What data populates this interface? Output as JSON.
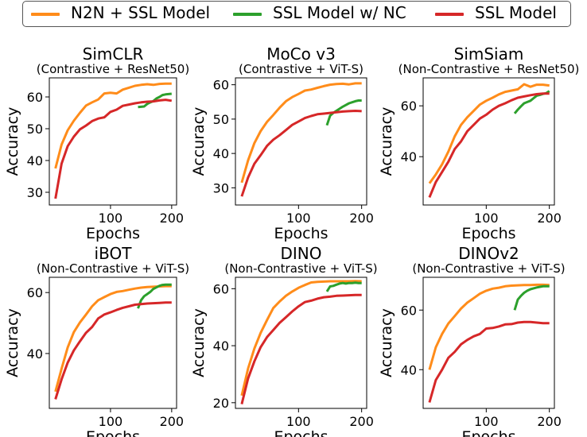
{
  "legend": {
    "items": [
      {
        "label": "N2N + SSL Model",
        "color": "#ff8c1a"
      },
      {
        "label": "SSL Model w/ NC",
        "color": "#2ca02c"
      },
      {
        "label": "SSL Model",
        "color": "#d62728"
      }
    ]
  },
  "chart_data": [
    {
      "type": "line",
      "title": "SimCLR",
      "subtitle": "(Contrastive + ResNet50)",
      "xlabel": "Epochs",
      "ylabel": "Accuracy",
      "xlim": [
        0,
        208
      ],
      "ylim": [
        26,
        66
      ],
      "xticks": [
        100,
        200
      ],
      "yticks": [
        30,
        40,
        50,
        60
      ],
      "grid": false,
      "series": [
        {
          "name": "N2N + SSL Model",
          "color": "#ff8c1a",
          "x": [
            10,
            20,
            30,
            40,
            50,
            60,
            70,
            80,
            90,
            100,
            110,
            120,
            130,
            140,
            150,
            160,
            170,
            180,
            190,
            200
          ],
          "y": [
            37.5,
            45,
            49.5,
            52.5,
            55,
            57.3,
            58.3,
            59.2,
            61.1,
            61.3,
            61.1,
            62.3,
            62.9,
            63.5,
            63.8,
            64,
            63.8,
            64.1,
            64.2,
            64.2
          ]
        },
        {
          "name": "SSL Model w/ NC",
          "color": "#2ca02c",
          "x": [
            145,
            150,
            155,
            160,
            165,
            170,
            175,
            180,
            185,
            190,
            195,
            200
          ],
          "y": [
            56.8,
            56.9,
            57,
            57.8,
            58.3,
            58.7,
            59.5,
            60,
            60.6,
            60.8,
            60.9,
            61
          ]
        },
        {
          "name": "SSL Model",
          "color": "#d62728",
          "x": [
            10,
            20,
            30,
            40,
            50,
            60,
            70,
            80,
            90,
            100,
            110,
            120,
            130,
            140,
            150,
            160,
            170,
            180,
            190,
            200
          ],
          "y": [
            28,
            39,
            44.5,
            47.5,
            49.8,
            51,
            52.4,
            53.2,
            53.6,
            55.3,
            56,
            57.2,
            57.6,
            58,
            58.3,
            58.5,
            58.6,
            58.9,
            59.1,
            58.8
          ]
        }
      ]
    },
    {
      "type": "line",
      "title": "MoCo v3",
      "subtitle": "(Contrastive + ViT-S)",
      "xlabel": "Epochs",
      "ylabel": "Accuracy",
      "xlim": [
        0,
        208
      ],
      "ylim": [
        25,
        62
      ],
      "xticks": [
        100,
        200
      ],
      "yticks": [
        30,
        40,
        50,
        60
      ],
      "grid": false,
      "series": [
        {
          "name": "N2N + SSL Model",
          "color": "#ff8c1a",
          "x": [
            10,
            20,
            30,
            40,
            50,
            60,
            70,
            80,
            90,
            100,
            110,
            120,
            130,
            140,
            150,
            160,
            170,
            180,
            190,
            200
          ],
          "y": [
            31.5,
            38,
            43,
            46.5,
            49.2,
            51.2,
            53.3,
            55.2,
            56.4,
            57.3,
            58.3,
            58.6,
            59.1,
            59.6,
            60,
            60.2,
            60.3,
            60.1,
            60.4,
            60.4
          ]
        },
        {
          "name": "SSL Model w/ NC",
          "color": "#2ca02c",
          "x": [
            145,
            150,
            155,
            160,
            165,
            170,
            175,
            180,
            185,
            190,
            195,
            200
          ],
          "y": [
            48.2,
            51,
            51.8,
            52.4,
            53,
            53.6,
            54.1,
            54.6,
            54.9,
            55.2,
            55.4,
            55.4
          ]
        },
        {
          "name": "SSL Model",
          "color": "#d62728",
          "x": [
            10,
            20,
            30,
            40,
            50,
            60,
            70,
            80,
            90,
            100,
            110,
            120,
            130,
            140,
            150,
            160,
            170,
            180,
            190,
            200
          ],
          "y": [
            27.5,
            33,
            37,
            39.5,
            42.2,
            44,
            45.3,
            46.8,
            48.3,
            49.3,
            50.3,
            50.9,
            51.4,
            51.6,
            51.8,
            52,
            52.2,
            52.3,
            52.4,
            52.3
          ]
        }
      ]
    },
    {
      "type": "line",
      "title": "SimSiam",
      "subtitle": "(Non-Contrastive + ResNet50)",
      "xlabel": "Epochs",
      "ylabel": "Accuracy",
      "xlim": [
        0,
        208
      ],
      "ylim": [
        21,
        71
      ],
      "xticks": [
        100,
        200
      ],
      "yticks": [
        40,
        60
      ],
      "grid": false,
      "series": [
        {
          "name": "N2N + SSL Model",
          "color": "#ff8c1a",
          "x": [
            10,
            20,
            30,
            40,
            50,
            60,
            70,
            80,
            90,
            100,
            110,
            120,
            130,
            140,
            150,
            160,
            170,
            180,
            190,
            200
          ],
          "y": [
            29.5,
            33,
            37,
            42,
            48,
            52.5,
            55.5,
            58,
            60.5,
            62,
            63.2,
            64.5,
            65.5,
            66,
            66.5,
            68.5,
            67.5,
            68.3,
            68.3,
            68
          ]
        },
        {
          "name": "SSL Model w/ NC",
          "color": "#2ca02c",
          "x": [
            145,
            150,
            155,
            160,
            165,
            170,
            175,
            180,
            185,
            190,
            195,
            200
          ],
          "y": [
            57,
            58.5,
            59.8,
            61,
            61.5,
            62,
            63,
            64,
            64.3,
            64.7,
            65,
            65.8
          ]
        },
        {
          "name": "SSL Model",
          "color": "#d62728",
          "x": [
            10,
            20,
            30,
            40,
            50,
            60,
            70,
            80,
            90,
            100,
            110,
            120,
            130,
            140,
            150,
            160,
            170,
            180,
            190,
            200
          ],
          "y": [
            24,
            30,
            34,
            38,
            43,
            46,
            50,
            52.5,
            55,
            56.5,
            58.5,
            60,
            61,
            62.2,
            63.2,
            63.7,
            64.2,
            64.6,
            64.8,
            64.8
          ]
        }
      ]
    },
    {
      "type": "line",
      "title": "iBOT",
      "subtitle": "(Non-Contrastive + ViT-S)",
      "xlabel": "Epochs",
      "ylabel": "Accuracy",
      "xlim": [
        0,
        208
      ],
      "ylim": [
        22,
        65
      ],
      "xticks": [
        100,
        200
      ],
      "yticks": [
        40,
        60
      ],
      "grid": false,
      "series": [
        {
          "name": "N2N + SSL Model",
          "color": "#ff8c1a",
          "x": [
            10,
            20,
            30,
            40,
            50,
            60,
            70,
            80,
            90,
            100,
            110,
            120,
            130,
            140,
            150,
            160,
            170,
            180,
            190,
            200
          ],
          "y": [
            27.5,
            35,
            42,
            47,
            50.2,
            52.8,
            55.5,
            57.5,
            58.5,
            59.5,
            60.2,
            60.5,
            60.9,
            61.3,
            61.6,
            61.8,
            61.9,
            62,
            62.1,
            62.1
          ]
        },
        {
          "name": "SSL Model w/ NC",
          "color": "#2ca02c",
          "x": [
            145,
            150,
            155,
            160,
            165,
            170,
            175,
            180,
            185,
            190,
            195,
            200
          ],
          "y": [
            54.8,
            57.5,
            58.8,
            59.5,
            60.2,
            61.2,
            61.7,
            62.2,
            62.5,
            62.6,
            62.6,
            62.6
          ]
        },
        {
          "name": "SSL Model",
          "color": "#d62728",
          "x": [
            10,
            20,
            30,
            40,
            50,
            60,
            70,
            80,
            90,
            100,
            110,
            120,
            130,
            140,
            150,
            160,
            170,
            180,
            190,
            200
          ],
          "y": [
            25,
            31.5,
            37,
            41,
            44,
            46.8,
            48.7,
            51.5,
            52.8,
            53.5,
            54.3,
            55,
            55.5,
            56,
            56.2,
            56.4,
            56.5,
            56.6,
            56.7,
            56.7
          ]
        }
      ]
    },
    {
      "type": "line",
      "title": "DINO",
      "subtitle": "(Non-Contrastive + ViT-S)",
      "xlabel": "Epochs",
      "ylabel": "Accuracy",
      "xlim": [
        0,
        208
      ],
      "ylim": [
        18,
        64
      ],
      "xticks": [
        100,
        200
      ],
      "yticks": [
        20,
        40,
        60
      ],
      "grid": false,
      "series": [
        {
          "name": "N2N + SSL Model",
          "color": "#ff8c1a",
          "x": [
            10,
            20,
            30,
            40,
            50,
            60,
            70,
            80,
            90,
            100,
            110,
            120,
            130,
            140,
            150,
            160,
            170,
            180,
            190,
            200
          ],
          "y": [
            22.5,
            32,
            39,
            44.5,
            49,
            53.2,
            55.5,
            57.5,
            59,
            60.3,
            61.3,
            62.2,
            62.4,
            62.5,
            62.6,
            62.6,
            62.6,
            62.6,
            62.7,
            62.6
          ]
        },
        {
          "name": "SSL Model w/ NC",
          "color": "#2ca02c",
          "x": [
            145,
            150,
            155,
            160,
            165,
            170,
            175,
            180,
            185,
            190,
            195,
            200
          ],
          "y": [
            59,
            60.8,
            61,
            61.4,
            61.8,
            62,
            61.8,
            62,
            62,
            62.1,
            62,
            62
          ]
        },
        {
          "name": "SSL Model",
          "color": "#d62728",
          "x": [
            10,
            20,
            30,
            40,
            50,
            60,
            70,
            80,
            90,
            100,
            110,
            120,
            130,
            140,
            150,
            160,
            170,
            180,
            190,
            200
          ],
          "y": [
            19.5,
            28.5,
            34.5,
            39.5,
            43,
            45.5,
            48,
            50,
            52,
            53.8,
            55.3,
            55.8,
            56.5,
            57,
            57.2,
            57.5,
            57.6,
            57.7,
            57.8,
            57.8
          ]
        }
      ]
    },
    {
      "type": "line",
      "title": "DINOv2",
      "subtitle": "(Non-Contrastive + ViT-S)",
      "xlabel": "Epochs",
      "ylabel": "Accuracy",
      "xlim": [
        0,
        208
      ],
      "ylim": [
        27,
        71
      ],
      "xticks": [
        100,
        200
      ],
      "yticks": [
        40,
        60
      ],
      "grid": false,
      "series": [
        {
          "name": "N2N + SSL Model",
          "color": "#ff8c1a",
          "x": [
            10,
            20,
            30,
            40,
            50,
            60,
            70,
            80,
            90,
            100,
            110,
            120,
            130,
            140,
            150,
            160,
            170,
            180,
            190,
            200
          ],
          "y": [
            40,
            47.5,
            52,
            55.5,
            58,
            60.5,
            62.5,
            64,
            65.5,
            66.5,
            67.2,
            67.5,
            68,
            68.2,
            68.3,
            68.4,
            68.4,
            68.5,
            68.5,
            68.4
          ]
        },
        {
          "name": "SSL Model w/ NC",
          "color": "#2ca02c",
          "x": [
            145,
            150,
            155,
            160,
            165,
            170,
            175,
            180,
            185,
            190,
            195,
            200
          ],
          "y": [
            60,
            63.5,
            64.8,
            65.8,
            66.5,
            67,
            67.3,
            67.6,
            67.8,
            68,
            68,
            68
          ]
        },
        {
          "name": "SSL Model",
          "color": "#d62728",
          "x": [
            10,
            20,
            30,
            40,
            50,
            60,
            70,
            80,
            90,
            100,
            110,
            120,
            130,
            140,
            150,
            160,
            170,
            180,
            190,
            200
          ],
          "y": [
            29,
            36.5,
            40,
            44,
            46,
            48.5,
            50,
            51.2,
            52,
            53.8,
            54,
            54.5,
            55.2,
            55.3,
            55.8,
            56,
            56,
            55.8,
            55.6,
            55.6
          ]
        }
      ]
    }
  ]
}
